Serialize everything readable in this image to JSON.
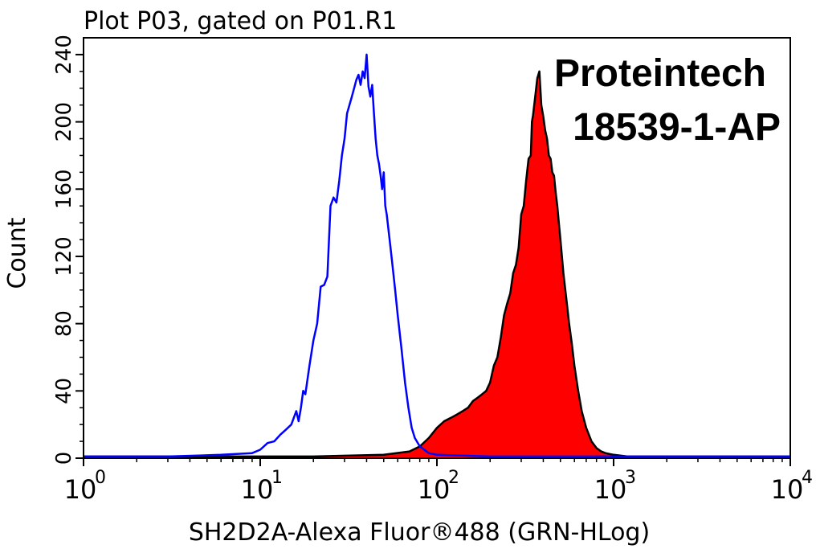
{
  "chart_data": {
    "type": "area",
    "title": "Plot P03, gated on P01.R1",
    "xlabel": "SH2D2A-Alexa Fluor®488 (GRN-HLog)",
    "ylabel": "Count",
    "xscale": "log",
    "xlim": [
      1,
      10000
    ],
    "ylim": [
      0,
      250
    ],
    "yticks": [
      "0",
      "40",
      "80",
      "120",
      "160",
      "200",
      "240"
    ],
    "xticks": [
      {
        "base": "10",
        "exp": "0"
      },
      {
        "base": "10",
        "exp": "1"
      },
      {
        "base": "10",
        "exp": "2"
      },
      {
        "base": "10",
        "exp": "3"
      },
      {
        "base": "10",
        "exp": "4"
      }
    ],
    "annotations": [
      "Proteintech",
      "18539-1-AP"
    ],
    "grid": false,
    "series": [
      {
        "style": "outline",
        "color": "#0000ff",
        "x": [
          1,
          3,
          6,
          9,
          10,
          11,
          12,
          13,
          14,
          15,
          16,
          16.5,
          17,
          17.5,
          18,
          19,
          20,
          21,
          22,
          23,
          24,
          25,
          26,
          27,
          28,
          29,
          30,
          31,
          32,
          33,
          34,
          35,
          36,
          37,
          38,
          39,
          40,
          41,
          42,
          43,
          44,
          45,
          46,
          47,
          48,
          49,
          50,
          51,
          52,
          54,
          56,
          58,
          60,
          63,
          66,
          69,
          72,
          75,
          80,
          90,
          100,
          200,
          500,
          1000,
          3000,
          10000
        ],
        "values": [
          1,
          1,
          2,
          3,
          5,
          9,
          10,
          14,
          17,
          20,
          28,
          22,
          30,
          40,
          38,
          55,
          70,
          80,
          102,
          103,
          108,
          150,
          155,
          152,
          165,
          180,
          190,
          205,
          210,
          215,
          220,
          225,
          228,
          222,
          230,
          226,
          240,
          221,
          215,
          222,
          205,
          190,
          180,
          175,
          168,
          160,
          170,
          150,
          145,
          130,
          115,
          100,
          85,
          65,
          45,
          30,
          18,
          12,
          7,
          3,
          2,
          1,
          1,
          1,
          1,
          1
        ]
      },
      {
        "style": "filled",
        "color": "#ff0000",
        "outline": "#000000",
        "x": [
          1,
          20,
          50,
          70,
          80,
          90,
          100,
          110,
          120,
          130,
          140,
          150,
          160,
          170,
          180,
          190,
          200,
          210,
          220,
          230,
          240,
          250,
          260,
          270,
          280,
          290,
          300,
          310,
          320,
          330,
          340,
          345,
          350,
          360,
          370,
          380,
          390,
          400,
          410,
          420,
          430,
          440,
          450,
          460,
          470,
          480,
          490,
          500,
          520,
          540,
          560,
          580,
          600,
          630,
          660,
          700,
          750,
          800,
          850,
          900,
          1000,
          1200,
          1500,
          2000,
          3000,
          10000
        ],
        "values": [
          1,
          1,
          2,
          4,
          7,
          12,
          18,
          22,
          24,
          26,
          28,
          30,
          34,
          36,
          38,
          40,
          45,
          55,
          60,
          72,
          85,
          92,
          98,
          110,
          115,
          125,
          145,
          150,
          165,
          178,
          180,
          200,
          204,
          215,
          226,
          230,
          210,
          203,
          195,
          190,
          180,
          178,
          170,
          168,
          158,
          150,
          140,
          130,
          110,
          95,
          80,
          68,
          55,
          40,
          28,
          18,
          10,
          6,
          4,
          3,
          2,
          1,
          1,
          1,
          1,
          1
        ]
      }
    ]
  }
}
